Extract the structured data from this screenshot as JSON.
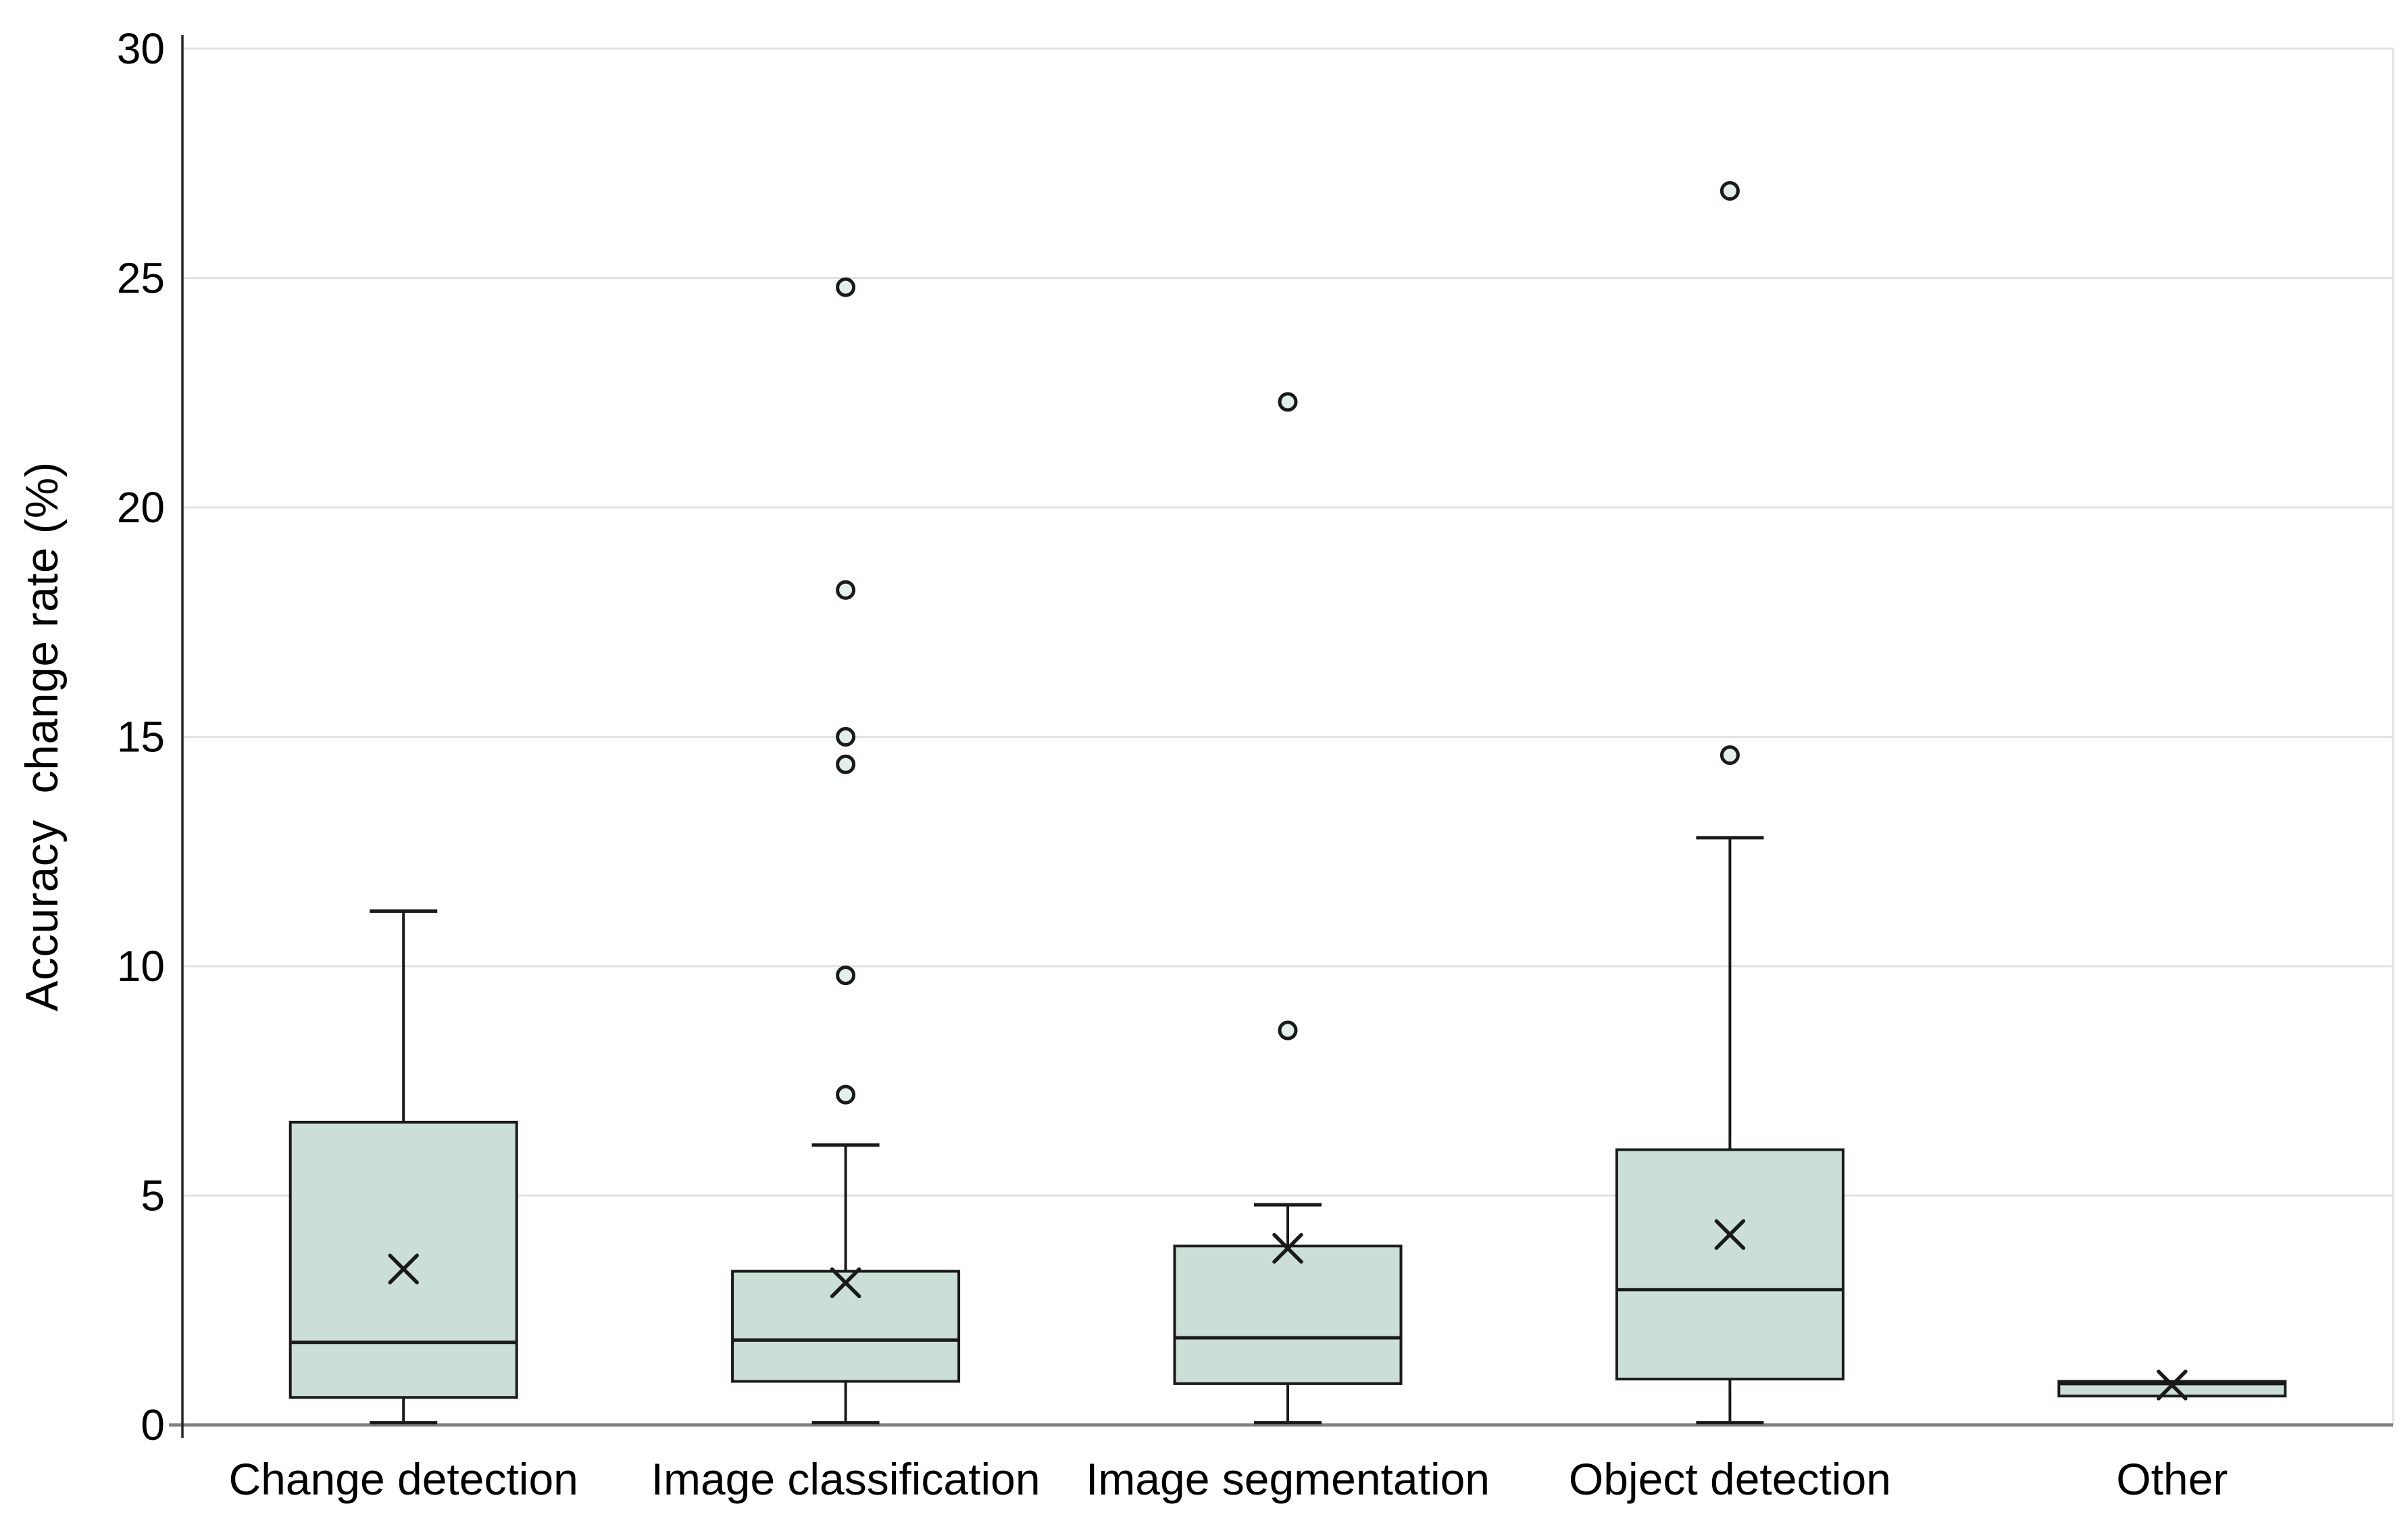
{
  "chart_data": {
    "type": "box",
    "title": "",
    "xlabel": "",
    "ylabel": "Accuracy  change rate (%)",
    "ylim": [
      0,
      30
    ],
    "yticks": [
      0,
      5,
      10,
      15,
      20,
      25,
      30
    ],
    "grid": "horizontal gridlines every 5 units, light gray",
    "legend": "none",
    "categories": [
      "Change detection",
      "Image classification",
      "Image segmentation",
      "Object detection",
      "Other"
    ],
    "series": [
      {
        "name": "Change detection",
        "whisker_low": 0.05,
        "q1": 0.6,
        "median": 1.8,
        "q3": 6.6,
        "whisker_high": 11.2,
        "mean": 3.4,
        "outliers": []
      },
      {
        "name": "Image classification",
        "whisker_low": 0.05,
        "q1": 0.95,
        "median": 1.85,
        "q3": 3.35,
        "whisker_high": 6.1,
        "mean": 3.1,
        "outliers": [
          7.2,
          9.8,
          14.4,
          15.0,
          18.2,
          24.8
        ]
      },
      {
        "name": "Image segmentation",
        "whisker_low": 0.05,
        "q1": 0.9,
        "median": 1.9,
        "q3": 3.9,
        "whisker_high": 4.8,
        "mean": 3.85,
        "outliers": [
          8.6,
          22.3
        ]
      },
      {
        "name": "Object detection",
        "whisker_low": 0.05,
        "q1": 1.0,
        "median": 2.95,
        "q3": 6.0,
        "whisker_high": 12.8,
        "mean": 4.15,
        "outliers": [
          14.6,
          26.9
        ]
      },
      {
        "name": "Other",
        "whisker_low": null,
        "q1": 0.63,
        "median": 0.9,
        "q3": 0.95,
        "whisker_high": null,
        "mean": 0.87,
        "outliers": []
      }
    ]
  },
  "style": {
    "background": "#ffffff",
    "box_fill": "#ccdfd6",
    "outlier_fill": "#e3efe9",
    "line_color": "#1a1a1a",
    "gridline_color": "#e2e2e2",
    "zero_axis_color": "#808080",
    "y_axis_line_color": "#262626",
    "text_color": "#000000"
  }
}
